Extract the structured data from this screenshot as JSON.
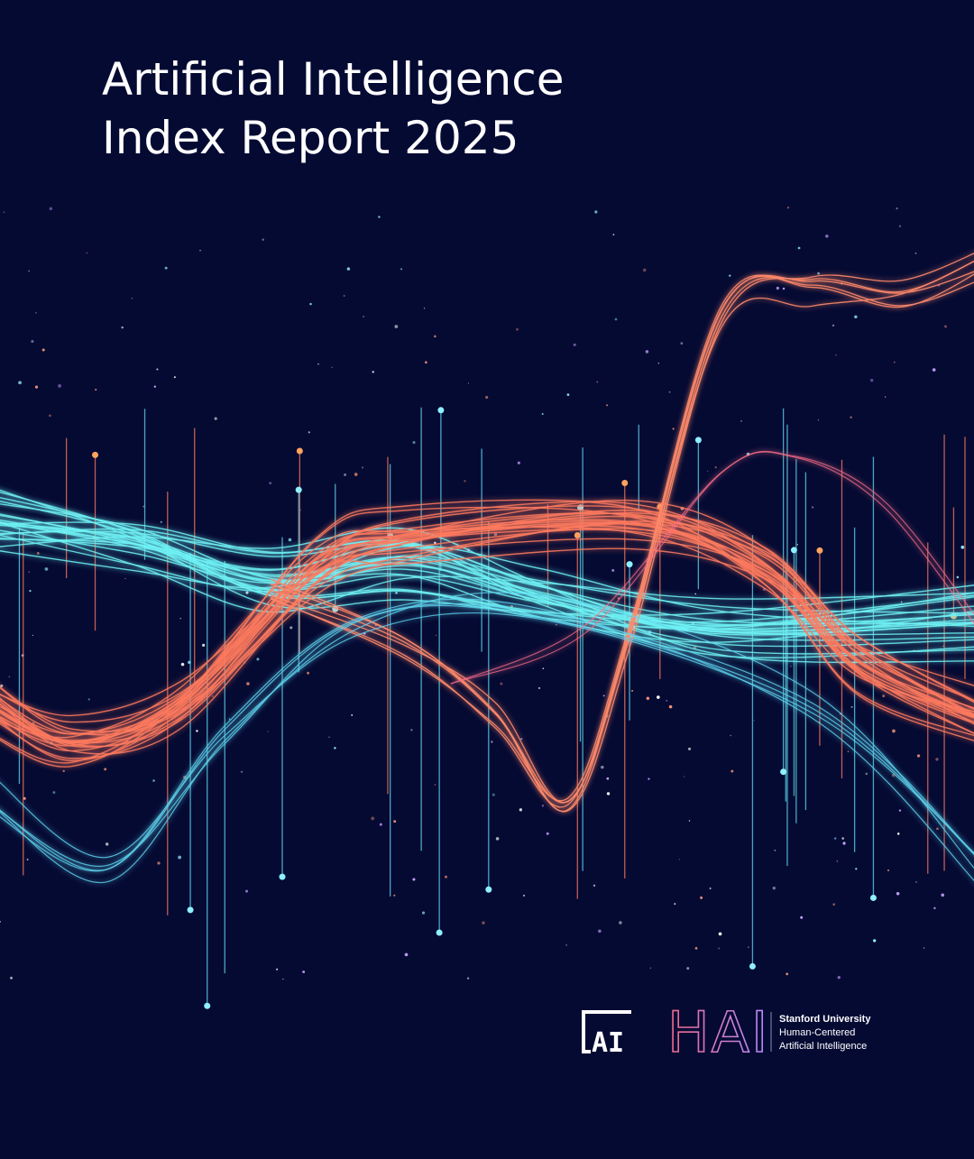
{
  "title_lines": [
    "Artificial Intelligence",
    "Index Report 2025"
  ],
  "logos": {
    "ai_index": "AI",
    "hai": "HAI"
  },
  "affiliation": [
    "Stanford University",
    "Human-Centered",
    "Artificial Intelligence"
  ]
}
